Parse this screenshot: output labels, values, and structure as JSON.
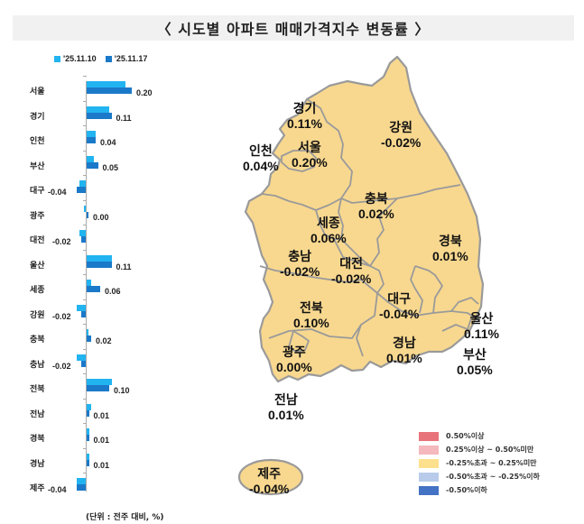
{
  "title": "〈 시도별 아파트 매매가격지수 변동률 〉",
  "colors": {
    "series_1": "#22b4f0",
    "series_2": "#1b79c9",
    "map_fill": "#f8d88f",
    "map_border": "#9a9a9a",
    "title_bg": "#f1f1f1"
  },
  "bar_legend": [
    {
      "label": "'25.11.10",
      "color": "#22b4f0"
    },
    {
      "label": "'25.11.17",
      "color": "#1b79c9"
    }
  ],
  "unit_note": "(단위 : 전주 대비, %)",
  "map_labels": [
    {
      "name": "경기",
      "value": "0.11%"
    },
    {
      "name": "강원",
      "value": "-0.02%"
    },
    {
      "name": "인천",
      "value": "0.04%"
    },
    {
      "name": "서울",
      "value": "0.20%"
    },
    {
      "name": "충북",
      "value": "0.02%"
    },
    {
      "name": "세종",
      "value": "0.06%"
    },
    {
      "name": "경북",
      "value": "0.01%"
    },
    {
      "name": "충남",
      "value": "-0.02%"
    },
    {
      "name": "대전",
      "value": "-0.02%"
    },
    {
      "name": "전북",
      "value": "0.10%"
    },
    {
      "name": "대구",
      "value": "-0.04%"
    },
    {
      "name": "울산",
      "value": "0.11%"
    },
    {
      "name": "광주",
      "value": "0.00%"
    },
    {
      "name": "경남",
      "value": "0.01%"
    },
    {
      "name": "부산",
      "value": "0.05%"
    },
    {
      "name": "전남",
      "value": "0.01%"
    },
    {
      "name": "제주",
      "value": "-0.04%"
    }
  ],
  "map_legend": [
    {
      "label": "0.50%이상",
      "color": "#e8737a"
    },
    {
      "label": "0.25%이상 ~ 0.50%미만",
      "color": "#f4b8bd"
    },
    {
      "label": "-0.25%초과 ~ 0.25%미만",
      "color": "#fde08e"
    },
    {
      "label": "-0.50%초과 ~ -0.25%이하",
      "color": "#b8cbea"
    },
    {
      "label": "-0.50%이하",
      "color": "#4472c4"
    }
  ],
  "chart_data": [
    {
      "type": "bar",
      "orientation": "horizontal",
      "title": "",
      "categories": [
        "서울",
        "경기",
        "인천",
        "부산",
        "대구",
        "광주",
        "대전",
        "울산",
        "세종",
        "강원",
        "충북",
        "충남",
        "전북",
        "전남",
        "경북",
        "경남",
        "제주"
      ],
      "series": [
        {
          "name": "'25.11.10",
          "values": [
            0.17,
            0.1,
            0.04,
            0.03,
            -0.03,
            -0.01,
            -0.03,
            0.11,
            0.02,
            -0.04,
            0.0,
            -0.04,
            0.11,
            0.02,
            0.01,
            0.01,
            -0.04
          ]
        },
        {
          "name": "'25.11.17",
          "values": [
            0.2,
            0.11,
            0.04,
            0.05,
            -0.04,
            0.0,
            -0.02,
            0.11,
            0.06,
            -0.02,
            0.02,
            -0.02,
            0.1,
            0.01,
            0.01,
            0.01,
            -0.04
          ]
        }
      ],
      "data_labels": [
        "0.20",
        "0.11",
        "0.04",
        "0.05",
        "-0.04",
        "0.00",
        "-0.02",
        "0.11",
        "0.06",
        "-0.02",
        "0.02",
        "-0.02",
        "0.10",
        "0.01",
        "0.01",
        "0.01",
        "-0.04"
      ],
      "xlabel": "",
      "ylabel": "",
      "note": "(단위 : 전주 대비, %)",
      "legend_position": "top",
      "grid": false
    },
    {
      "type": "choropleth",
      "title": "",
      "regions": [
        "경기",
        "강원",
        "인천",
        "서울",
        "충북",
        "세종",
        "경북",
        "충남",
        "대전",
        "전북",
        "대구",
        "울산",
        "광주",
        "경남",
        "부산",
        "전남",
        "제주"
      ],
      "values": [
        0.11,
        -0.02,
        0.04,
        0.2,
        0.02,
        0.06,
        0.01,
        -0.02,
        -0.02,
        0.1,
        -0.04,
        0.11,
        0.0,
        0.01,
        0.05,
        0.01,
        -0.04
      ],
      "legend": [
        "0.50%이상",
        "0.25%이상 ~ 0.50%미만",
        "-0.25%초과 ~ 0.25%미만",
        "-0.50%초과 ~ -0.25%이하",
        "-0.50%이하"
      ]
    }
  ]
}
